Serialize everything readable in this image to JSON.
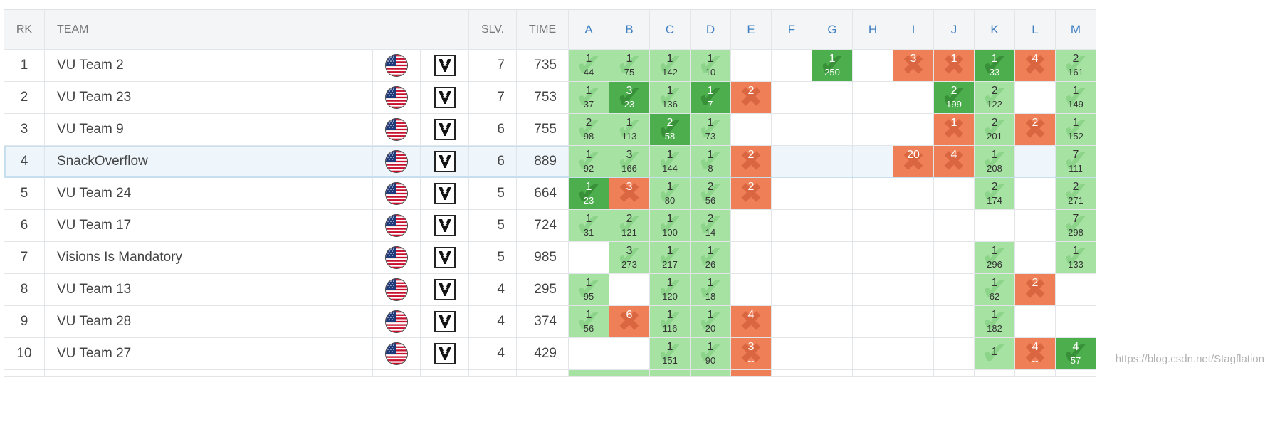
{
  "columns": {
    "rank": "RK",
    "team": "TEAM",
    "solved": "SLV.",
    "time": "TIME"
  },
  "problems": [
    "A",
    "B",
    "C",
    "D",
    "E",
    "F",
    "G",
    "H",
    "I",
    "J",
    "K",
    "L",
    "M"
  ],
  "colors": {
    "solved": "#a6e3a3",
    "first_to_solve": "#4cae4c",
    "failed": "#ef7f56",
    "problem_header": "#3f7fc2"
  },
  "icons": {
    "flag": "us-flag-icon",
    "affiliation": "vanderbilt-logo-icon"
  },
  "rows": [
    {
      "rank": "1",
      "team": "VU Team 2",
      "solved": "7",
      "time": "735",
      "highlight": false,
      "cells": [
        {
          "s": "solved",
          "a": "1",
          "t": "44"
        },
        {
          "s": "solved",
          "a": "1",
          "t": "75"
        },
        {
          "s": "solved",
          "a": "1",
          "t": "142"
        },
        {
          "s": "solved",
          "a": "1",
          "t": "10"
        },
        {
          "s": "none"
        },
        {
          "s": "none"
        },
        {
          "s": "first",
          "a": "1",
          "t": "250"
        },
        {
          "s": "none"
        },
        {
          "s": "failed",
          "a": "3",
          "t": "--"
        },
        {
          "s": "failed",
          "a": "1",
          "t": "--"
        },
        {
          "s": "first",
          "a": "1",
          "t": "33"
        },
        {
          "s": "failed",
          "a": "4",
          "t": "--"
        },
        {
          "s": "solved",
          "a": "2",
          "t": "161"
        }
      ]
    },
    {
      "rank": "2",
      "team": "VU Team 23",
      "solved": "7",
      "time": "753",
      "highlight": false,
      "cells": [
        {
          "s": "solved",
          "a": "1",
          "t": "37"
        },
        {
          "s": "first",
          "a": "3",
          "t": "23"
        },
        {
          "s": "solved",
          "a": "1",
          "t": "136"
        },
        {
          "s": "first",
          "a": "1",
          "t": "7"
        },
        {
          "s": "failed",
          "a": "2",
          "t": "--"
        },
        {
          "s": "none"
        },
        {
          "s": "none"
        },
        {
          "s": "none"
        },
        {
          "s": "none"
        },
        {
          "s": "first",
          "a": "2",
          "t": "199"
        },
        {
          "s": "solved",
          "a": "2",
          "t": "122"
        },
        {
          "s": "none"
        },
        {
          "s": "solved",
          "a": "1",
          "t": "149"
        }
      ]
    },
    {
      "rank": "3",
      "team": "VU Team 9",
      "solved": "6",
      "time": "755",
      "highlight": false,
      "cells": [
        {
          "s": "solved",
          "a": "2",
          "t": "98"
        },
        {
          "s": "solved",
          "a": "1",
          "t": "113"
        },
        {
          "s": "first",
          "a": "2",
          "t": "58"
        },
        {
          "s": "solved",
          "a": "1",
          "t": "73"
        },
        {
          "s": "none"
        },
        {
          "s": "none"
        },
        {
          "s": "none"
        },
        {
          "s": "none"
        },
        {
          "s": "none"
        },
        {
          "s": "failed",
          "a": "1",
          "t": "--"
        },
        {
          "s": "solved",
          "a": "2",
          "t": "201"
        },
        {
          "s": "failed",
          "a": "2",
          "t": "--"
        },
        {
          "s": "solved",
          "a": "1",
          "t": "152"
        }
      ]
    },
    {
      "rank": "4",
      "team": "SnackOverflow",
      "solved": "6",
      "time": "889",
      "highlight": true,
      "cells": [
        {
          "s": "solved",
          "a": "1",
          "t": "92"
        },
        {
          "s": "solved",
          "a": "3",
          "t": "166"
        },
        {
          "s": "solved",
          "a": "1",
          "t": "144"
        },
        {
          "s": "solved",
          "a": "1",
          "t": "8"
        },
        {
          "s": "failed",
          "a": "2",
          "t": "--"
        },
        {
          "s": "none"
        },
        {
          "s": "none"
        },
        {
          "s": "none"
        },
        {
          "s": "failed",
          "a": "20",
          "t": "--"
        },
        {
          "s": "failed",
          "a": "4",
          "t": "--"
        },
        {
          "s": "solved",
          "a": "1",
          "t": "208"
        },
        {
          "s": "none"
        },
        {
          "s": "solved",
          "a": "7",
          "t": "111"
        }
      ]
    },
    {
      "rank": "5",
      "team": "VU Team 24",
      "solved": "5",
      "time": "664",
      "highlight": false,
      "cells": [
        {
          "s": "first",
          "a": "1",
          "t": "23"
        },
        {
          "s": "failed",
          "a": "3",
          "t": "--"
        },
        {
          "s": "solved",
          "a": "1",
          "t": "80"
        },
        {
          "s": "solved",
          "a": "2",
          "t": "56"
        },
        {
          "s": "failed",
          "a": "2",
          "t": "--"
        },
        {
          "s": "none"
        },
        {
          "s": "none"
        },
        {
          "s": "none"
        },
        {
          "s": "none"
        },
        {
          "s": "none"
        },
        {
          "s": "solved",
          "a": "2",
          "t": "174"
        },
        {
          "s": "none"
        },
        {
          "s": "solved",
          "a": "2",
          "t": "271"
        }
      ]
    },
    {
      "rank": "6",
      "team": "VU Team 17",
      "solved": "5",
      "time": "724",
      "highlight": false,
      "cells": [
        {
          "s": "solved",
          "a": "1",
          "t": "31"
        },
        {
          "s": "solved",
          "a": "2",
          "t": "121"
        },
        {
          "s": "solved",
          "a": "1",
          "t": "100"
        },
        {
          "s": "solved",
          "a": "2",
          "t": "14"
        },
        {
          "s": "none"
        },
        {
          "s": "none"
        },
        {
          "s": "none"
        },
        {
          "s": "none"
        },
        {
          "s": "none"
        },
        {
          "s": "none"
        },
        {
          "s": "none"
        },
        {
          "s": "none"
        },
        {
          "s": "solved",
          "a": "7",
          "t": "298"
        }
      ]
    },
    {
      "rank": "7",
      "team": "Visions Is Mandatory",
      "solved": "5",
      "time": "985",
      "highlight": false,
      "cells": [
        {
          "s": "none"
        },
        {
          "s": "solved",
          "a": "3",
          "t": "273"
        },
        {
          "s": "solved",
          "a": "1",
          "t": "217"
        },
        {
          "s": "solved",
          "a": "1",
          "t": "26"
        },
        {
          "s": "none"
        },
        {
          "s": "none"
        },
        {
          "s": "none"
        },
        {
          "s": "none"
        },
        {
          "s": "none"
        },
        {
          "s": "none"
        },
        {
          "s": "solved",
          "a": "1",
          "t": "296"
        },
        {
          "s": "none"
        },
        {
          "s": "solved",
          "a": "1",
          "t": "133"
        }
      ]
    },
    {
      "rank": "8",
      "team": "VU Team 13",
      "solved": "4",
      "time": "295",
      "highlight": false,
      "cells": [
        {
          "s": "solved",
          "a": "1",
          "t": "95"
        },
        {
          "s": "none"
        },
        {
          "s": "solved",
          "a": "1",
          "t": "120"
        },
        {
          "s": "solved",
          "a": "1",
          "t": "18"
        },
        {
          "s": "none"
        },
        {
          "s": "none"
        },
        {
          "s": "none"
        },
        {
          "s": "none"
        },
        {
          "s": "none"
        },
        {
          "s": "none"
        },
        {
          "s": "solved",
          "a": "1",
          "t": "62"
        },
        {
          "s": "failed",
          "a": "2",
          "t": "--"
        },
        {
          "s": "none"
        }
      ]
    },
    {
      "rank": "9",
      "team": "VU Team 28",
      "solved": "4",
      "time": "374",
      "highlight": false,
      "cells": [
        {
          "s": "solved",
          "a": "1",
          "t": "56"
        },
        {
          "s": "failed",
          "a": "6",
          "t": "--"
        },
        {
          "s": "solved",
          "a": "1",
          "t": "116"
        },
        {
          "s": "solved",
          "a": "1",
          "t": "20"
        },
        {
          "s": "failed",
          "a": "4",
          "t": "--"
        },
        {
          "s": "none"
        },
        {
          "s": "none"
        },
        {
          "s": "none"
        },
        {
          "s": "none"
        },
        {
          "s": "none"
        },
        {
          "s": "solved",
          "a": "1",
          "t": "182"
        },
        {
          "s": "none"
        },
        {
          "s": "none"
        }
      ]
    },
    {
      "rank": "10",
      "team": "VU Team 27",
      "solved": "4",
      "time": "429",
      "highlight": false,
      "cells": [
        {
          "s": "none"
        },
        {
          "s": "none"
        },
        {
          "s": "solved",
          "a": "1",
          "t": "151"
        },
        {
          "s": "solved",
          "a": "1",
          "t": "90"
        },
        {
          "s": "failed",
          "a": "3",
          "t": "--"
        },
        {
          "s": "none"
        },
        {
          "s": "none"
        },
        {
          "s": "none"
        },
        {
          "s": "none"
        },
        {
          "s": "none"
        },
        {
          "s": "solved",
          "a": "1",
          "t": ""
        },
        {
          "s": "failed",
          "a": "4",
          "t": "--"
        },
        {
          "s": "first",
          "a": "4",
          "t": "57"
        }
      ]
    }
  ],
  "watermark": "https://blog.csdn.net/Stagflation"
}
